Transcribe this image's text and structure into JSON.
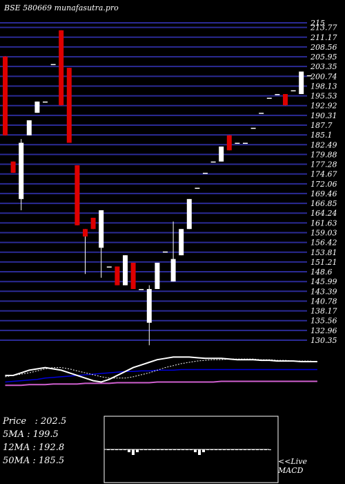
{
  "chart_data": {
    "type": "candlestick",
    "title": "BSE 580669 munafasutra.pro",
    "y_ticks": [
      "215",
      "213.77",
      "211.17",
      "208.56",
      "205.95",
      "203.35",
      "200.74",
      "198.13",
      "195.53",
      "192.92",
      "190.31",
      "187.7",
      "185.1",
      "182.49",
      "179.88",
      "177.28",
      "174.67",
      "172.06",
      "169.46",
      "166.85",
      "164.24",
      "161.63",
      "159.03",
      "156.42",
      "153.81",
      "151.21",
      "148.6",
      "145.99",
      "143.39",
      "140.78",
      "138.17",
      "135.56",
      "132.96",
      "130.35"
    ],
    "ylim": [
      130.35,
      215
    ],
    "candles": [
      {
        "o": 206.0,
        "h": 206.0,
        "l": 185.0,
        "c": 185.0
      },
      {
        "o": 178.0,
        "h": 178.0,
        "l": 175.0,
        "c": 175.0
      },
      {
        "o": 168.0,
        "h": 184.0,
        "l": 165.0,
        "c": 183.0
      },
      {
        "o": 185.0,
        "h": 189.0,
        "l": 185.0,
        "c": 189.0
      },
      {
        "o": 191.0,
        "h": 194.0,
        "l": 191.0,
        "c": 194.0
      },
      {
        "o": 194.0,
        "h": 194.0,
        "l": 194.0,
        "c": 194.0
      },
      {
        "o": 204.0,
        "h": 204.0,
        "l": 204.0,
        "c": 204.0
      },
      {
        "o": 213.0,
        "h": 213.0,
        "l": 193.0,
        "c": 193.0
      },
      {
        "o": 203.0,
        "h": 203.0,
        "l": 183.0,
        "c": 183.0
      },
      {
        "o": 177.0,
        "h": 177.0,
        "l": 161.0,
        "c": 161.0
      },
      {
        "o": 160.0,
        "h": 160.0,
        "l": 148.0,
        "c": 158.0
      },
      {
        "o": 163.0,
        "h": 163.0,
        "l": 160.0,
        "c": 160.0
      },
      {
        "o": 155.0,
        "h": 165.0,
        "l": 147.0,
        "c": 165.0
      },
      {
        "o": 150.0,
        "h": 150.0,
        "l": 150.0,
        "c": 150.0
      },
      {
        "o": 150.0,
        "h": 150.0,
        "l": 145.0,
        "c": 145.0
      },
      {
        "o": 145.0,
        "h": 153.0,
        "l": 145.0,
        "c": 153.0
      },
      {
        "o": 151.0,
        "h": 151.0,
        "l": 144.0,
        "c": 144.0
      },
      {
        "o": 144.0,
        "h": 144.0,
        "l": 144.0,
        "c": 144.0
      },
      {
        "o": 135.0,
        "h": 145.0,
        "l": 129.0,
        "c": 144.0
      },
      {
        "o": 144.0,
        "h": 151.0,
        "l": 144.0,
        "c": 151.0
      },
      {
        "o": 154.0,
        "h": 154.0,
        "l": 154.0,
        "c": 154.0
      },
      {
        "o": 146.0,
        "h": 162.0,
        "l": 146.0,
        "c": 152.0
      },
      {
        "o": 153.0,
        "h": 160.0,
        "l": 153.0,
        "c": 160.0
      },
      {
        "o": 160.0,
        "h": 168.0,
        "l": 160.0,
        "c": 168.0
      },
      {
        "o": 171.0,
        "h": 171.0,
        "l": 171.0,
        "c": 171.0
      },
      {
        "o": 175.0,
        "h": 175.0,
        "l": 175.0,
        "c": 175.0
      },
      {
        "o": 178.0,
        "h": 178.0,
        "l": 178.0,
        "c": 178.0
      },
      {
        "o": 178.0,
        "h": 182.0,
        "l": 178.0,
        "c": 182.0
      },
      {
        "o": 185.0,
        "h": 185.0,
        "l": 181.0,
        "c": 181.0
      },
      {
        "o": 183.0,
        "h": 183.0,
        "l": 183.0,
        "c": 183.0
      },
      {
        "o": 183.0,
        "h": 183.0,
        "l": 183.0,
        "c": 183.0
      },
      {
        "o": 187.0,
        "h": 187.0,
        "l": 187.0,
        "c": 187.0
      },
      {
        "o": 191.0,
        "h": 191.0,
        "l": 191.0,
        "c": 191.0
      },
      {
        "o": 195.0,
        "h": 195.0,
        "l": 195.0,
        "c": 195.0
      },
      {
        "o": 196.0,
        "h": 196.0,
        "l": 196.0,
        "c": 196.0
      },
      {
        "o": 196.0,
        "h": 196.0,
        "l": 193.0,
        "c": 193.0
      },
      {
        "o": 197.0,
        "h": 197.0,
        "l": 197.0,
        "c": 197.0
      },
      {
        "o": 196.0,
        "h": 202.0,
        "l": 196.0,
        "c": 202.0
      },
      {
        "o": 201.0,
        "h": 201.0,
        "l": 201.0,
        "c": 201.0
      }
    ],
    "colors": {
      "up": "#ffffff",
      "down": "#dd0000",
      "grid": "#2b2b96",
      "ma5": "#ffffff",
      "ma12": "#ffffff",
      "ma50": "#0000dd",
      "ma200": "#d060d0",
      "macd_frame": "#ffffff"
    },
    "ma_panel": {
      "ma5": [
        60,
        60,
        64,
        68,
        70,
        72,
        70,
        68,
        64,
        60,
        56,
        52,
        50,
        54,
        60,
        66,
        72,
        76,
        80,
        84,
        86,
        88,
        88,
        88,
        87,
        86,
        86,
        86,
        85,
        84,
        84,
        84,
        83,
        83,
        82,
        82,
        82,
        81,
        81,
        81
      ],
      "ma12": [
        58,
        60,
        62,
        64,
        67,
        70,
        72,
        72,
        70,
        67,
        64,
        61,
        58,
        56,
        56,
        56,
        58,
        61,
        64,
        68,
        72,
        75,
        78,
        80,
        82,
        83,
        84,
        84,
        85,
        85,
        85,
        85,
        84,
        84,
        83,
        83,
        82,
        82,
        82,
        81
      ],
      "ma50": [
        50,
        51,
        52,
        53,
        54,
        56,
        57,
        58,
        59,
        60,
        61,
        62,
        63,
        64,
        65,
        66,
        66,
        67,
        67,
        68,
        68,
        68,
        69,
        69,
        69,
        69,
        69,
        69,
        69,
        69,
        69,
        69,
        69,
        69,
        69,
        69,
        69,
        69,
        69,
        69
      ],
      "ma200": [
        45,
        45,
        45,
        46,
        46,
        46,
        47,
        47,
        47,
        47,
        48,
        48,
        48,
        48,
        49,
        49,
        49,
        49,
        49,
        50,
        50,
        50,
        50,
        50,
        50,
        50,
        50,
        51,
        51,
        51,
        51,
        51,
        51,
        51,
        51,
        51,
        51,
        51,
        51,
        51
      ]
    },
    "macd_hist": [
      0,
      0,
      0,
      0,
      0,
      -1,
      -2,
      -1,
      0,
      0,
      0,
      0,
      0,
      0,
      0,
      0,
      0,
      0,
      0,
      0,
      0,
      -1,
      -2,
      -1,
      0,
      0,
      0,
      0,
      0,
      0,
      0,
      0,
      0,
      0,
      0,
      0,
      0,
      0,
      0,
      0
    ]
  },
  "price_panel": {
    "price": "Price   : 202.5",
    "ma5": "5MA : 199.5",
    "ma12": "12MA : 192.8",
    "ma50": "50MA : 185.5"
  },
  "macd_note": {
    "line1": "<<Live",
    "line2": "MACD"
  }
}
